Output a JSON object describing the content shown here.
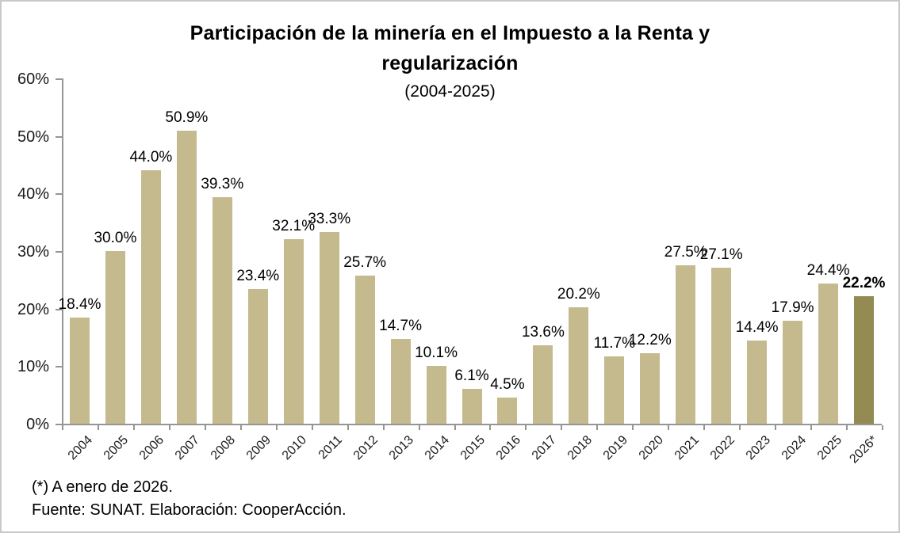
{
  "chart": {
    "title_line1": "Participación de la minería en el Impuesto a la Renta y",
    "title_line2": "regularización",
    "subtitle": "(2004-2025)"
  },
  "chart_data": {
    "type": "bar",
    "title": "Participación de la minería en el Impuesto a la Renta y regularización (2004-2025)",
    "categories": [
      "2004",
      "2005",
      "2006",
      "2007",
      "2008",
      "2009",
      "2010",
      "2011",
      "2012",
      "2013",
      "2014",
      "2015",
      "2016",
      "2017",
      "2018",
      "2019",
      "2020",
      "2021",
      "2022",
      "2023",
      "2024",
      "2025",
      "2026*"
    ],
    "values": [
      18.4,
      30.0,
      44.0,
      50.9,
      39.3,
      23.4,
      32.1,
      33.3,
      25.7,
      14.7,
      10.1,
      6.1,
      4.5,
      13.6,
      20.2,
      11.7,
      12.2,
      27.5,
      27.1,
      14.4,
      17.9,
      24.4,
      22.2
    ],
    "labels": [
      "18.4%",
      "30.0%",
      "44.0%",
      "50.9%",
      "39.3%",
      "23.4%",
      "32.1%",
      "33.3%",
      "25.7%",
      "14.7%",
      "10.1%",
      "6.1%",
      "4.5%",
      "13.6%",
      "20.2%",
      "11.7%",
      "12.2%",
      "27.5%",
      "27.1%",
      "14.4%",
      "17.9%",
      "24.4%",
      "22.2%"
    ],
    "xlabel": "",
    "ylabel": "",
    "ylim": [
      0,
      60
    ],
    "y_ticks": [
      "0%",
      "10%",
      "20%",
      "30%",
      "40%",
      "50%",
      "60%"
    ],
    "grid": false,
    "legend": "none",
    "bar_color": "#c4ba8e",
    "highlight_color": "#938b52",
    "highlight_index": 22,
    "axis_color": "#959595"
  },
  "footer": {
    "note": "(*) A enero de 2026.",
    "source": "Fuente: SUNAT. Elaboración: CooperAcción."
  }
}
